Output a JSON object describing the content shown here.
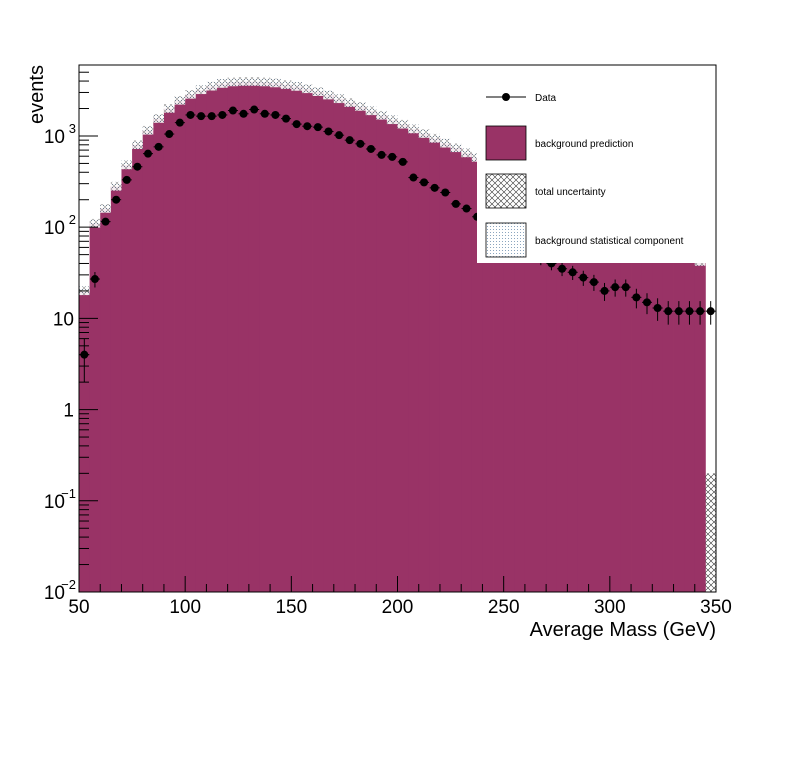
{
  "chart_data": {
    "type": "bar",
    "xlabel": "Average Mass (GeV)",
    "ylabel": "events",
    "x_range": [
      50,
      350
    ],
    "y_range": [
      0.01,
      6000
    ],
    "y_scale": "log",
    "grid": false,
    "legend_position": "top-right",
    "x_ticks": [
      {
        "value": 50,
        "label": "50"
      },
      {
        "value": 100,
        "label": "100"
      },
      {
        "value": 150,
        "label": "150"
      },
      {
        "value": 200,
        "label": "200"
      },
      {
        "value": 250,
        "label": "250"
      },
      {
        "value": 300,
        "label": "300"
      },
      {
        "value": 350,
        "label": "350"
      }
    ],
    "y_ticks": [
      {
        "value": 0.01,
        "label": "10",
        "exp": "−2"
      },
      {
        "value": 0.1,
        "label": "10",
        "exp": "−1"
      },
      {
        "value": 1,
        "label": "1",
        "exp": ""
      },
      {
        "value": 10,
        "label": "10",
        "exp": ""
      },
      {
        "value": 100,
        "label": "10",
        "exp": "2"
      },
      {
        "value": 1000,
        "label": "10",
        "exp": "3"
      }
    ],
    "bin_edges_start": 50,
    "bin_width": 5,
    "series": [
      {
        "name": "background prediction",
        "color": "#993366",
        "values": [
          20,
          110,
          160,
          280,
          480,
          800,
          1150,
          1550,
          2000,
          2450,
          2850,
          3200,
          3500,
          3750,
          3900,
          3950,
          3950,
          3900,
          3800,
          3650,
          3480,
          3280,
          3050,
          2800,
          2550,
          2320,
          2100,
          1880,
          1680,
          1500,
          1340,
          1190,
          1060,
          940,
          830,
          740,
          650,
          580,
          510,
          450,
          400,
          350,
          310,
          270,
          240,
          210,
          185,
          165,
          145,
          130,
          115,
          100,
          90,
          80,
          70,
          62,
          55,
          48,
          42,
          38
        ]
      },
      {
        "name": "Data",
        "color": "#000000",
        "values": [
          4,
          27,
          115,
          200,
          330,
          460,
          640,
          760,
          1050,
          1400,
          1700,
          1650,
          1650,
          1700,
          1900,
          1750,
          1950,
          1750,
          1700,
          1550,
          1350,
          1280,
          1250,
          1120,
          1020,
          900,
          820,
          720,
          620,
          590,
          520,
          350,
          310,
          270,
          240,
          180,
          160,
          130,
          110,
          85,
          75,
          62,
          55,
          45,
          40,
          35,
          32,
          28,
          25,
          20,
          22,
          22,
          17,
          15,
          13,
          12,
          12,
          12,
          12,
          12
        ]
      }
    ],
    "legend": [
      {
        "label": "Data",
        "kind": "marker"
      },
      {
        "label": "background prediction",
        "kind": "fill",
        "color": "#993366"
      },
      {
        "label": "total uncertainty",
        "kind": "hatch"
      },
      {
        "label": "background statistical component",
        "kind": "dots"
      }
    ],
    "last_bin_uncertainty": 0.2
  }
}
